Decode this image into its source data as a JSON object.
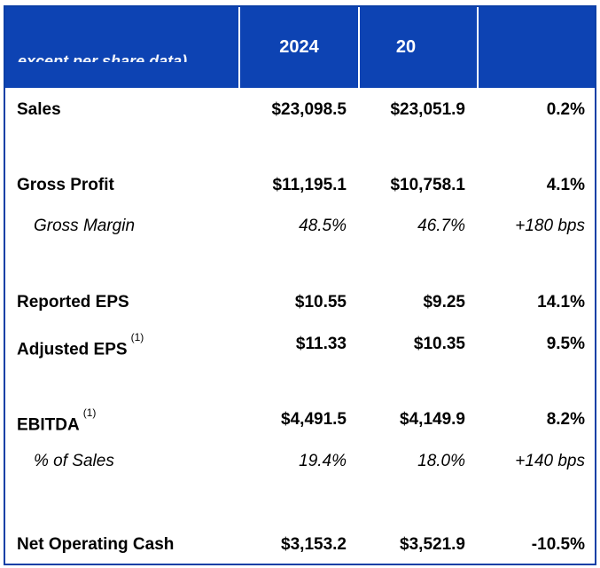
{
  "header": {
    "cut_label": "except per share data)",
    "col_2024": "2024",
    "col_prev": "20",
    "col_change": ""
  },
  "rows": [
    {
      "label": "Sales",
      "sup": "",
      "v2024": "$23,098.5",
      "vprev": "$23,051.9",
      "change": "0.2%"
    },
    {
      "label": "Gross Profit",
      "sup": "",
      "v2024": "$11,195.1",
      "vprev": "$10,758.1",
      "change": "4.1%"
    },
    {
      "label": "Gross Margin",
      "sup": "",
      "v2024": "48.5%",
      "vprev": "46.7%",
      "change": "+180 bps"
    },
    {
      "label": "Reported EPS",
      "sup": "",
      "v2024": "$10.55",
      "vprev": "$9.25",
      "change": "14.1%"
    },
    {
      "label": "Adjusted EPS",
      "sup": "(1)",
      "v2024": "$11.33",
      "vprev": "$10.35",
      "change": "9.5%"
    },
    {
      "label": "EBITDA",
      "sup": "(1)",
      "v2024": "$4,491.5",
      "vprev": "$4,149.9",
      "change": "8.2%"
    },
    {
      "label": "% of Sales",
      "sup": "",
      "v2024": "19.4%",
      "vprev": "18.0%",
      "change": "+140 bps"
    },
    {
      "label": "Net Operating Cash",
      "sup": "",
      "v2024": "$3,153.2",
      "vprev": "$3,521.9",
      "change": "-10.5%"
    }
  ],
  "colors": {
    "header_bg": "#0d43b3",
    "border": "#0b3fa6",
    "header_text": "#ffffff"
  }
}
